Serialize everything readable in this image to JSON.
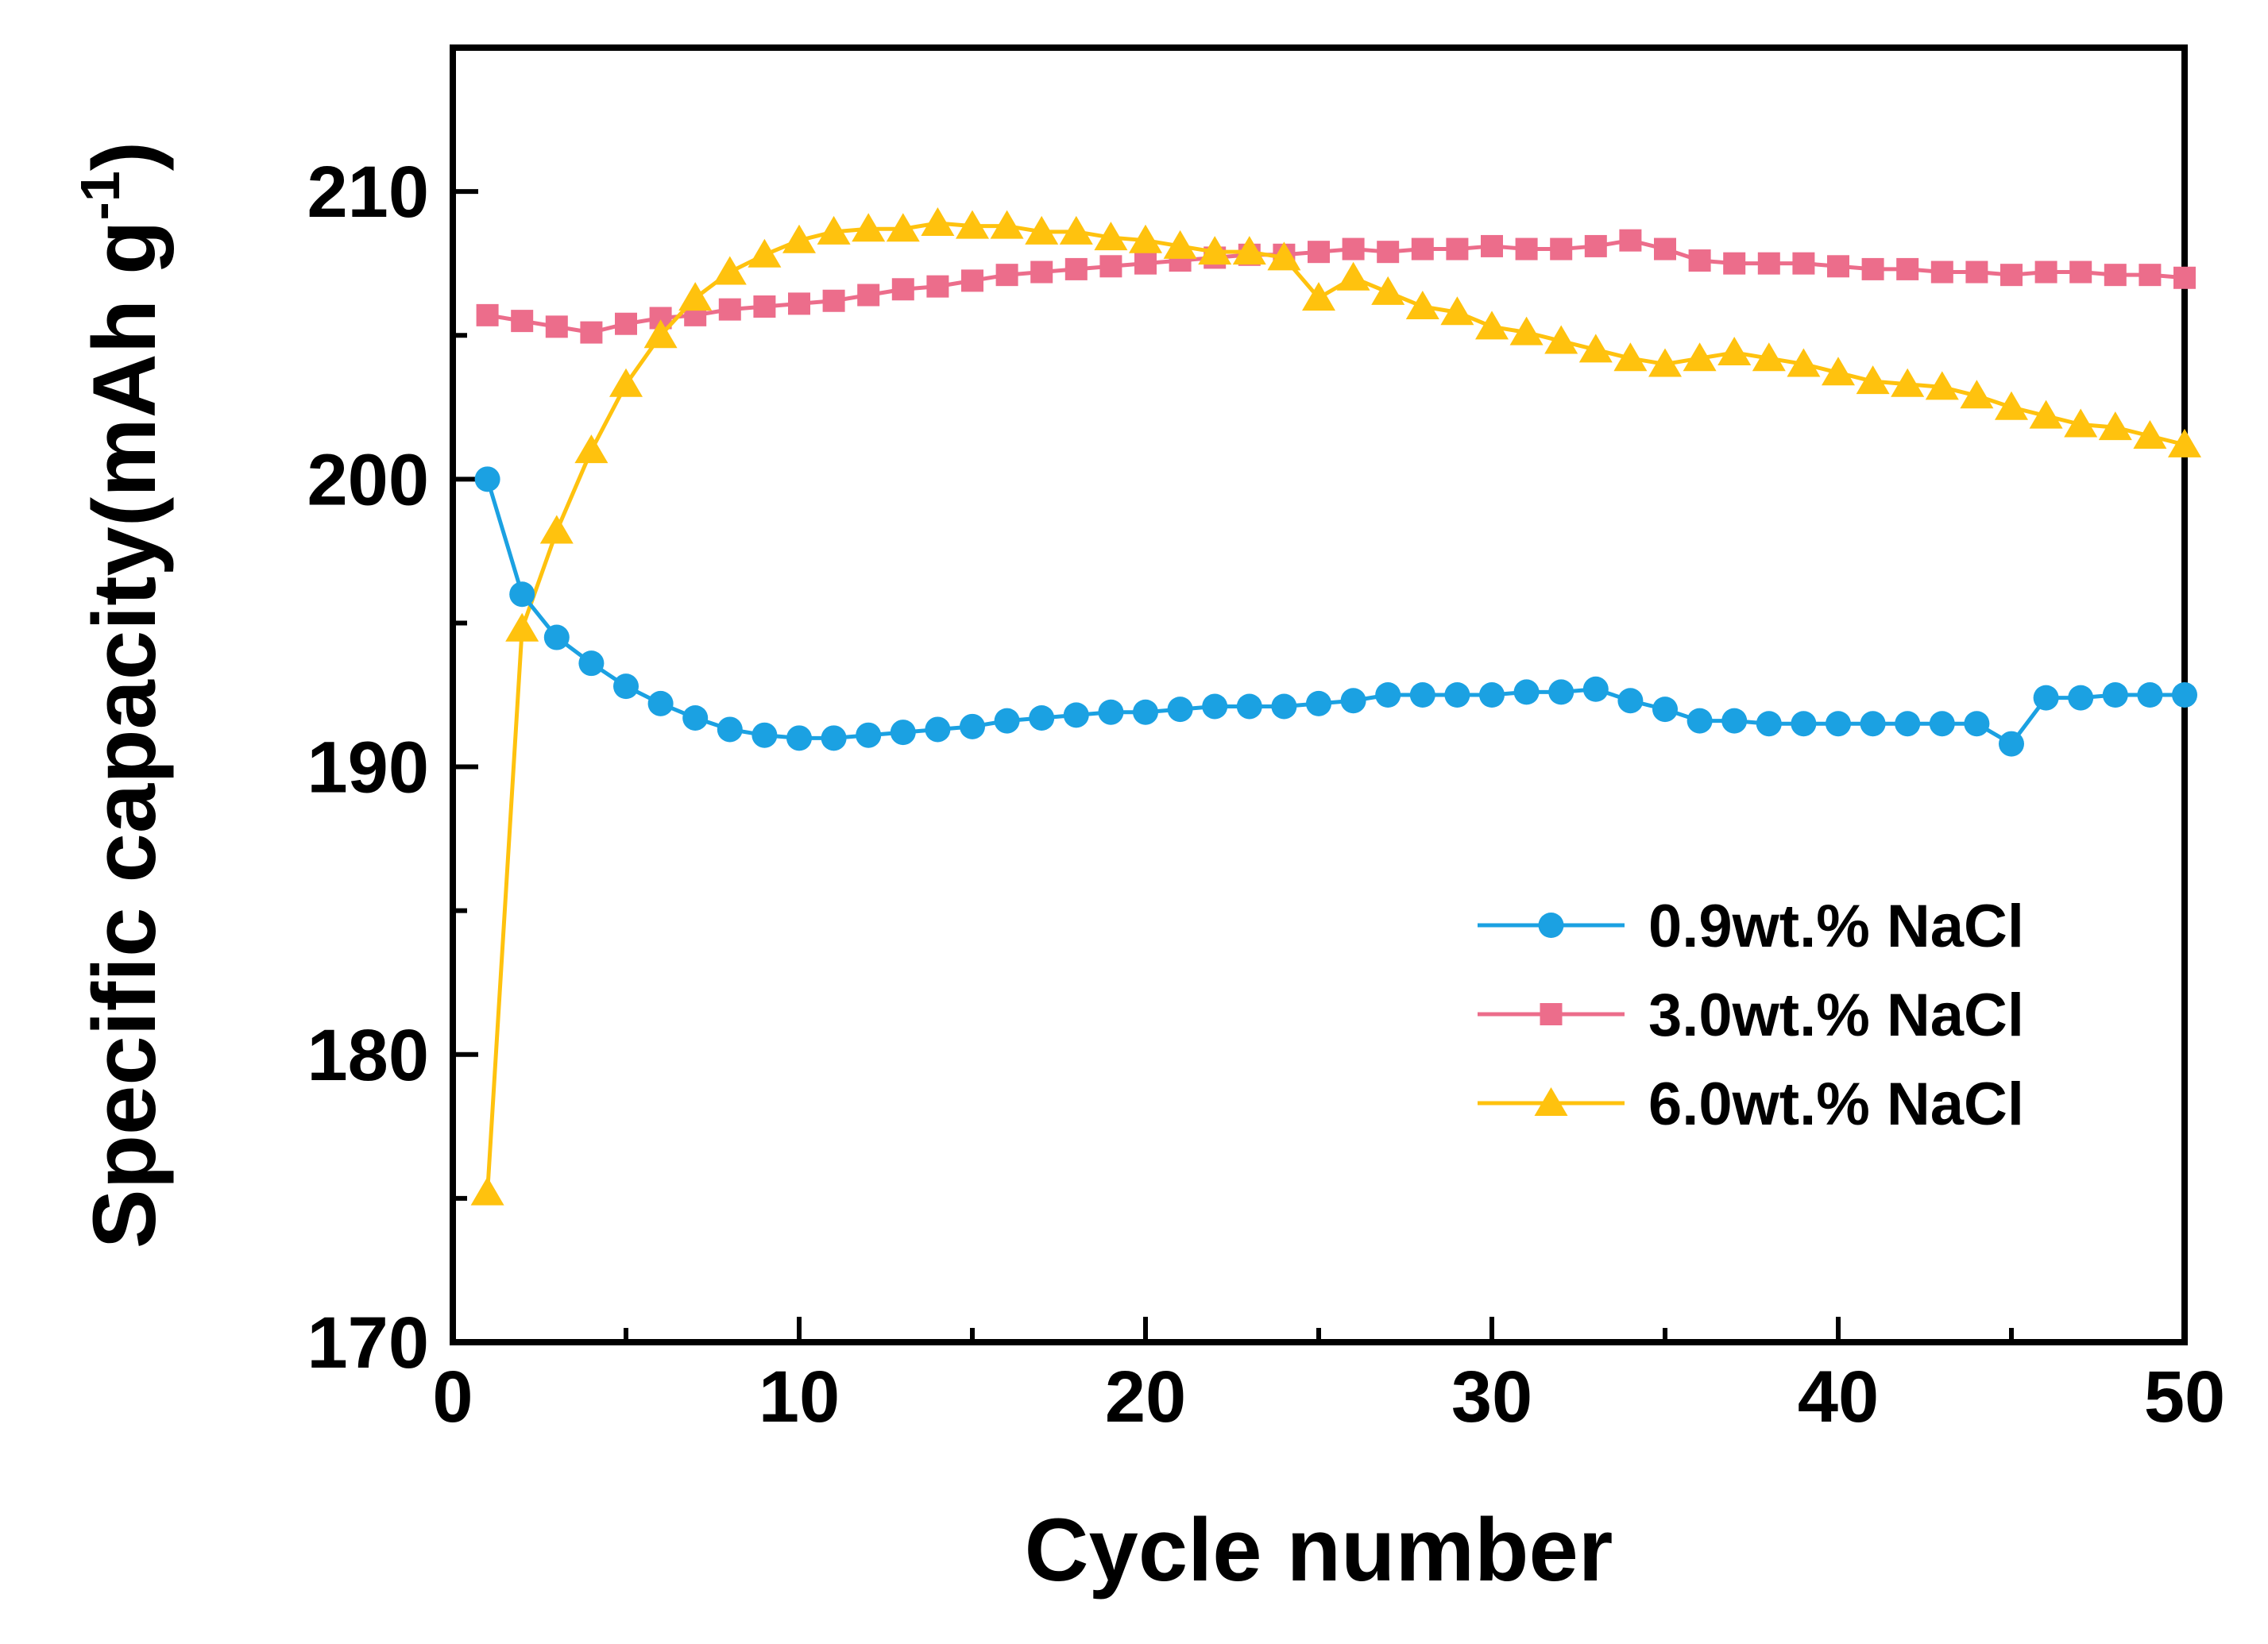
{
  "chart_data": {
    "type": "line",
    "xlabel": "Cycle number",
    "ylabel": "Specific capacity(mAh g",
    "ylabel_superscript": "-1",
    "ylabel_close": ")",
    "xlim": [
      0,
      50
    ],
    "ylim": [
      170,
      215
    ],
    "xticks": [
      0,
      10,
      20,
      30,
      40,
      50
    ],
    "yticks": [
      170,
      180,
      190,
      200,
      210
    ],
    "legend_position": "center-right",
    "grid": false,
    "x": [
      1,
      2,
      3,
      4,
      5,
      6,
      7,
      8,
      9,
      10,
      11,
      12,
      13,
      14,
      15,
      16,
      17,
      18,
      19,
      20,
      21,
      22,
      23,
      24,
      25,
      26,
      27,
      28,
      29,
      30,
      31,
      32,
      33,
      34,
      35,
      36,
      37,
      38,
      39,
      40,
      41,
      42,
      43,
      44,
      45,
      46,
      47,
      48,
      49,
      50
    ],
    "series": [
      {
        "name": "0.9wt.% NaCl",
        "color": "#1ba1e2",
        "marker": "circle",
        "values": [
          200.0,
          196.0,
          194.5,
          193.6,
          192.8,
          192.2,
          191.7,
          191.3,
          191.1,
          191.0,
          191.0,
          191.1,
          191.2,
          191.3,
          191.4,
          191.6,
          191.7,
          191.8,
          191.9,
          191.9,
          192.0,
          192.1,
          192.1,
          192.1,
          192.2,
          192.3,
          192.5,
          192.5,
          192.5,
          192.5,
          192.6,
          192.6,
          192.7,
          192.3,
          192.0,
          191.6,
          191.6,
          191.5,
          191.5,
          191.5,
          191.5,
          191.5,
          191.5,
          191.5,
          190.8,
          192.4,
          192.4,
          192.5,
          192.5,
          192.5
        ]
      },
      {
        "name": "3.0wt.% NaCl",
        "color": "#ec6d8b",
        "marker": "square",
        "values": [
          205.7,
          205.5,
          205.3,
          205.1,
          205.4,
          205.6,
          205.7,
          205.9,
          206.0,
          206.1,
          206.2,
          206.4,
          206.6,
          206.7,
          206.9,
          207.1,
          207.2,
          207.3,
          207.4,
          207.5,
          207.6,
          207.7,
          207.8,
          207.8,
          207.9,
          208.0,
          207.9,
          208.0,
          208.0,
          208.1,
          208.0,
          208.0,
          208.1,
          208.3,
          208.0,
          207.6,
          207.5,
          207.5,
          207.5,
          207.4,
          207.3,
          207.3,
          207.2,
          207.2,
          207.1,
          207.2,
          207.2,
          207.1,
          207.1,
          207.0
        ]
      },
      {
        "name": "6.0wt.% NaCl",
        "color": "#ffc20e",
        "marker": "triangle",
        "values": [
          175.2,
          194.8,
          198.2,
          201.0,
          203.3,
          205.0,
          206.3,
          207.2,
          207.8,
          208.3,
          208.6,
          208.7,
          208.7,
          208.9,
          208.8,
          208.8,
          208.6,
          208.6,
          208.4,
          208.3,
          208.1,
          207.9,
          207.9,
          207.7,
          206.3,
          207.0,
          206.5,
          206.0,
          205.8,
          205.3,
          205.1,
          204.8,
          204.5,
          204.2,
          204.0,
          204.2,
          204.4,
          204.2,
          204.0,
          203.7,
          203.4,
          203.3,
          203.2,
          202.9,
          202.5,
          202.2,
          201.9,
          201.8,
          201.5,
          201.2
        ]
      }
    ]
  }
}
